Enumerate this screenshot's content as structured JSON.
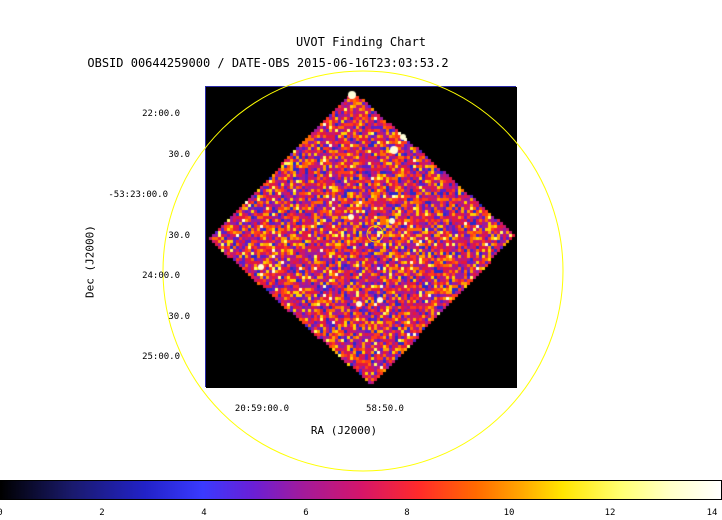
{
  "header": {
    "title": "UVOT Finding Chart",
    "subtitle": "OBSID 00644259000 / DATE-OBS 2015-06-16T23:03:53.2"
  },
  "axes": {
    "ylabel": "Dec (J2000)",
    "xlabel": "RA (J2000)",
    "yticks": [
      "22:00.0",
      "30.0",
      "-53:23:00.0",
      "30.0",
      "24:00.0",
      "30.0",
      "25:00.0"
    ],
    "xticks": [
      "20:59:00.0",
      "58:50.0"
    ]
  },
  "colorbar": {
    "ticks": [
      "0",
      "2",
      "4",
      "6",
      "8",
      "10",
      "12",
      "14"
    ]
  },
  "colors": {
    "circle": "#ffff00",
    "marker": "#ffcc00",
    "image_bg": "#000000"
  }
}
